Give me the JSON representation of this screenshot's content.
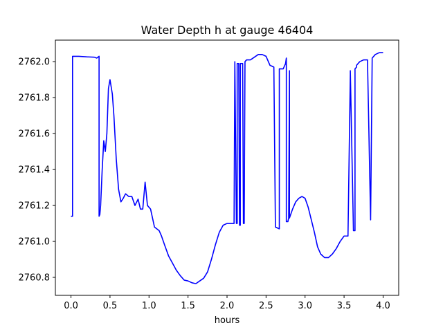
{
  "chart_data": {
    "type": "line",
    "title": "Water Depth h at gauge 46404",
    "xlabel": "hours",
    "ylabel": "",
    "xlim": [
      -0.2,
      4.2
    ],
    "ylim": [
      2760.7,
      2762.12
    ],
    "xticks": [
      0.0,
      0.5,
      1.0,
      1.5,
      2.0,
      2.5,
      3.0,
      3.5,
      4.0
    ],
    "xtick_labels": [
      "0.0",
      "0.5",
      "1.0",
      "1.5",
      "2.0",
      "2.5",
      "3.0",
      "3.5",
      "4.0"
    ],
    "yticks": [
      2760.8,
      2761.0,
      2761.2,
      2761.4,
      2761.6,
      2761.8,
      2762.0
    ],
    "ytick_labels": [
      "2760.8",
      "2761.0",
      "2761.2",
      "2761.4",
      "2761.6",
      "2761.8",
      "2762.0"
    ],
    "grid": false,
    "series": [
      {
        "color": "#0000ff",
        "x": [
          0.0,
          0.02,
          0.02,
          0.1,
          0.2,
          0.3,
          0.33,
          0.36,
          0.36,
          0.37,
          0.38,
          0.4,
          0.42,
          0.44,
          0.46,
          0.48,
          0.5,
          0.53,
          0.55,
          0.58,
          0.61,
          0.64,
          0.67,
          0.7,
          0.74,
          0.78,
          0.82,
          0.86,
          0.89,
          0.92,
          0.95,
          0.98,
          1.0,
          1.02,
          1.04,
          1.07,
          1.1,
          1.13,
          1.16,
          1.2,
          1.25,
          1.3,
          1.35,
          1.4,
          1.45,
          1.5,
          1.55,
          1.6,
          1.65,
          1.7,
          1.75,
          1.8,
          1.85,
          1.9,
          1.95,
          2.0,
          2.05,
          2.09,
          2.1,
          2.1,
          2.12,
          2.13,
          2.13,
          2.15,
          2.16,
          2.17,
          2.17,
          2.2,
          2.21,
          2.22,
          2.23,
          2.23,
          2.25,
          2.25,
          2.26,
          2.27,
          2.3,
          2.35,
          2.4,
          2.45,
          2.5,
          2.55,
          2.6,
          2.62,
          2.62,
          2.67,
          2.67,
          2.72,
          2.73,
          2.75,
          2.76,
          2.76,
          2.78,
          2.79,
          2.8,
          2.8,
          2.84,
          2.88,
          2.92,
          2.96,
          3.0,
          3.04,
          3.08,
          3.12,
          3.16,
          3.2,
          3.25,
          3.3,
          3.35,
          3.4,
          3.45,
          3.5,
          3.55,
          3.58,
          3.58,
          3.62,
          3.64,
          3.64,
          3.66,
          3.66,
          3.7,
          3.75,
          3.8,
          3.84,
          3.84,
          3.86,
          3.86,
          3.9,
          3.95,
          4.0
        ],
        "y": [
          2761.14,
          2761.14,
          2762.03,
          2762.03,
          2762.027,
          2762.025,
          2762.02,
          2762.03,
          2761.14,
          2761.15,
          2761.2,
          2761.4,
          2761.56,
          2761.5,
          2761.6,
          2761.85,
          2761.9,
          2761.82,
          2761.7,
          2761.46,
          2761.29,
          2761.22,
          2761.24,
          2761.265,
          2761.25,
          2761.25,
          2761.2,
          2761.235,
          2761.18,
          2761.18,
          2761.33,
          2761.2,
          2761.19,
          2761.18,
          2761.14,
          2761.08,
          2761.07,
          2761.06,
          2761.03,
          2760.98,
          2760.92,
          2760.88,
          2760.84,
          2760.81,
          2760.785,
          2760.78,
          2760.77,
          2760.765,
          2760.78,
          2760.795,
          2760.83,
          2760.9,
          2760.98,
          2761.05,
          2761.09,
          2761.1,
          2761.1,
          2761.1,
          2762.0,
          2762.0,
          2761.1,
          2761.1,
          2761.99,
          2761.99,
          2761.09,
          2761.09,
          2761.99,
          2761.99,
          2761.1,
          2761.1,
          2761.99,
          2762.0,
          2762.01,
          2762.01,
          2762.01,
          2762.01,
          2762.01,
          2762.025,
          2762.04,
          2762.04,
          2762.03,
          2761.98,
          2761.97,
          2761.08,
          2761.08,
          2761.07,
          2761.96,
          2761.96,
          2761.97,
          2761.99,
          2762.02,
          2761.11,
          2761.11,
          2761.13,
          2761.95,
          2761.13,
          2761.18,
          2761.22,
          2761.24,
          2761.25,
          2761.24,
          2761.19,
          2761.12,
          2761.05,
          2760.97,
          2760.93,
          2760.91,
          2760.91,
          2760.93,
          2760.96,
          2761.0,
          2761.03,
          2761.03,
          2761.93,
          2761.95,
          2761.06,
          2761.06,
          2761.96,
          2761.97,
          2761.98,
          2762.0,
          2762.01,
          2762.01,
          2761.12,
          2761.12,
          2762.01,
          2762.02,
          2762.04,
          2762.05,
          2762.05
        ]
      }
    ]
  }
}
